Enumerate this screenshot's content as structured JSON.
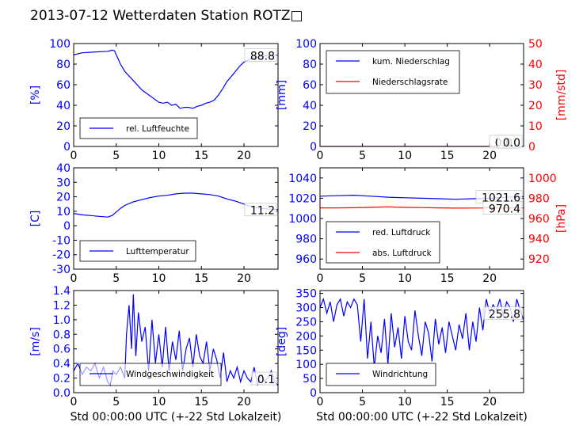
{
  "title": "2013-07-12 Wetterdaten Station ROTZ□",
  "colors": {
    "primary": "#0000ff",
    "secondary": "#ff0000",
    "axis": "#000000"
  },
  "chart_data": [
    {
      "type": "line",
      "id": "humidity",
      "ylabel": "[%]",
      "ylim": [
        0,
        100
      ],
      "yticks": [
        0,
        20,
        40,
        60,
        80,
        100
      ],
      "xlim": [
        0,
        24
      ],
      "xticks": [
        0,
        5,
        10,
        15,
        20
      ],
      "legend": "bottom-left",
      "last_value_label": "88.8",
      "series": [
        {
          "name": "rel. Luftfeuchte",
          "color": "#0000ff",
          "x": [
            0,
            1,
            2,
            3,
            4,
            4.5,
            4.8,
            5,
            5.5,
            6,
            7,
            8,
            9,
            10,
            10.5,
            11,
            11.5,
            12,
            12.5,
            13,
            13.5,
            14,
            14.5,
            15,
            15.5,
            16,
            16.5,
            17,
            17.5,
            18,
            18.5,
            19,
            19.5,
            20,
            21,
            22,
            23,
            24
          ],
          "y": [
            89,
            91,
            91.5,
            92,
            92.5,
            93.5,
            93,
            89,
            80,
            73,
            64,
            55,
            49,
            43,
            42,
            43,
            40,
            41,
            37,
            38,
            38,
            37,
            39,
            40,
            42,
            43,
            45,
            50,
            56,
            63,
            68,
            73,
            78,
            82,
            86,
            87.5,
            88.5,
            88.8
          ]
        }
      ]
    },
    {
      "type": "line",
      "id": "precipitation",
      "ylabel": "[mm]",
      "ylim": [
        0,
        100
      ],
      "yticks": [
        0,
        20,
        40,
        60,
        80,
        100
      ],
      "y2label": "[mm/std]",
      "y2lim": [
        0,
        50
      ],
      "y2ticks": [
        0,
        10,
        20,
        30,
        40,
        50
      ],
      "xlim": [
        0,
        24
      ],
      "xticks": [
        0,
        5,
        10,
        15,
        20
      ],
      "legend": "top-left",
      "last_value_labels": [
        "0.0",
        "0.0"
      ],
      "series": [
        {
          "name": "kum. Niederschlag",
          "axis": "left",
          "color": "#0000ff",
          "x": [
            0,
            24
          ],
          "y": [
            0,
            0
          ]
        },
        {
          "name": "Niederschlagsrate",
          "axis": "right",
          "color": "#ff0000",
          "x": [
            0,
            24
          ],
          "y": [
            0,
            0
          ]
        }
      ]
    },
    {
      "type": "line",
      "id": "temperature",
      "ylabel": "[C]",
      "ylim": [
        -30,
        40
      ],
      "yticks": [
        -30,
        -20,
        -10,
        0,
        10,
        20,
        30,
        40
      ],
      "xlim": [
        0,
        24
      ],
      "xticks": [
        0,
        5,
        10,
        15,
        20
      ],
      "legend": "bottom-left",
      "last_value_label": "11.2",
      "series": [
        {
          "name": "Lufttemperatur",
          "color": "#0000ff",
          "x": [
            0,
            1,
            2,
            3,
            4,
            4.5,
            5,
            5.5,
            6,
            7,
            8,
            9,
            10,
            11,
            12,
            13,
            14,
            15,
            16,
            17,
            18,
            19,
            20,
            21,
            22,
            23,
            24
          ],
          "y": [
            8.5,
            7.5,
            7,
            6.5,
            6,
            7,
            9.5,
            12,
            14,
            16.5,
            18,
            19.5,
            20.5,
            21,
            22,
            22.5,
            22.5,
            22,
            21.5,
            20.5,
            18.5,
            17,
            15,
            13,
            12,
            11.5,
            11.2
          ]
        }
      ]
    },
    {
      "type": "line",
      "id": "pressure",
      "ylim": [
        950,
        1050
      ],
      "yticks": [
        960,
        980,
        1000,
        1020,
        1040
      ],
      "y2label": "[hPa]",
      "y2lim": [
        910,
        1010
      ],
      "y2ticks": [
        920,
        940,
        960,
        980,
        1000
      ],
      "xlim": [
        0,
        24
      ],
      "xticks": [
        0,
        5,
        10,
        15,
        20
      ],
      "legend": "bottom-left",
      "last_value_labels": [
        "1021.6",
        "970.4"
      ],
      "series": [
        {
          "name": "red. Luftdruck",
          "axis": "left",
          "color": "#0000ff",
          "x": [
            0,
            2,
            4,
            6,
            8,
            10,
            12,
            14,
            16,
            18,
            20,
            22,
            24
          ],
          "y": [
            1022,
            1022.5,
            1023,
            1022,
            1021,
            1020.5,
            1020,
            1019.5,
            1019,
            1019.5,
            1020,
            1021,
            1021.6
          ]
        },
        {
          "name": "abs. Luftdruck",
          "axis": "right",
          "color": "#ff0000",
          "x": [
            0,
            2,
            4,
            6,
            8,
            10,
            12,
            14,
            16,
            18,
            20,
            22,
            24
          ],
          "y": [
            970.5,
            970.5,
            970.6,
            971,
            971.5,
            971,
            970.8,
            970.5,
            970.2,
            970.3,
            970.4,
            970.4,
            970.4
          ]
        }
      ]
    },
    {
      "type": "line",
      "id": "wind-speed",
      "ylabel": "[m/s]",
      "ylim": [
        0,
        1.4
      ],
      "yticks": [
        0.0,
        0.2,
        0.4,
        0.6,
        0.8,
        1.0,
        1.2,
        1.4
      ],
      "xlim": [
        0,
        24
      ],
      "xticks": [
        0,
        5,
        10,
        15,
        20
      ],
      "xlabel": "Std 00:00:00 UTC (+-22 Std Lokalzeit)",
      "legend": "bottom-left",
      "last_value_label": "0.1",
      "series": [
        {
          "name": "Windgeschwindigkeit",
          "color": "#0000ff",
          "x": [
            0,
            0.5,
            1,
            1.5,
            2,
            2.5,
            3,
            3.5,
            4,
            4.3,
            4.6,
            5,
            5.5,
            6,
            6.2,
            6.5,
            6.8,
            7,
            7.3,
            7.6,
            8,
            8.4,
            8.8,
            9.2,
            9.6,
            10,
            10.4,
            10.8,
            11.2,
            11.6,
            12,
            12.4,
            12.8,
            13.2,
            13.6,
            14,
            14.4,
            14.8,
            15.2,
            15.6,
            16,
            16.4,
            16.8,
            17.2,
            17.6,
            18,
            18.4,
            18.8,
            19.2,
            19.6,
            20,
            20.4,
            20.8,
            21.2,
            21.6,
            22,
            22.4,
            22.8,
            23.2,
            23.6,
            24
          ],
          "y": [
            0.3,
            0.4,
            0.25,
            0.35,
            0.3,
            0.4,
            0.2,
            0.35,
            0.15,
            0.1,
            0.3,
            0.25,
            0.35,
            0.2,
            0.8,
            1.2,
            0.6,
            1.35,
            0.5,
            1.1,
            0.7,
            0.9,
            0.3,
            1.0,
            0.4,
            0.8,
            0.35,
            0.9,
            0.3,
            0.7,
            0.45,
            0.85,
            0.3,
            0.6,
            0.75,
            0.35,
            0.8,
            0.5,
            0.4,
            0.7,
            0.3,
            0.6,
            0.45,
            0.2,
            0.55,
            0.15,
            0.3,
            0.2,
            0.35,
            0.15,
            0.3,
            0.2,
            0.15,
            0.35,
            0.1,
            0.25,
            0.15,
            0.2,
            0.3,
            0.15,
            0.1
          ]
        }
      ]
    },
    {
      "type": "line",
      "id": "wind-direction",
      "ylabel": "[deg]",
      "ylim": [
        0,
        360
      ],
      "yticks": [
        0,
        50,
        100,
        150,
        200,
        250,
        300,
        350
      ],
      "xlim": [
        0,
        24
      ],
      "xticks": [
        0,
        5,
        10,
        15,
        20
      ],
      "xlabel": "Std 00:00:00 UTC (+-22 Std Lokalzeit)",
      "legend": "bottom-left",
      "last_value_label": "255.8",
      "series": [
        {
          "name": "Windrichtung",
          "color": "#0000ff",
          "x": [
            0,
            0.4,
            0.8,
            1.2,
            1.6,
            2,
            2.4,
            2.8,
            3.2,
            3.6,
            4,
            4.4,
            4.8,
            5.2,
            5.6,
            6,
            6.4,
            6.8,
            7.2,
            7.6,
            8,
            8.4,
            8.8,
            9.2,
            9.6,
            10,
            10.4,
            10.8,
            11.2,
            11.6,
            12,
            12.4,
            12.8,
            13.2,
            13.6,
            14,
            14.4,
            14.8,
            15.2,
            15.6,
            16,
            16.4,
            16.8,
            17.2,
            17.6,
            18,
            18.4,
            18.8,
            19.2,
            19.6,
            20,
            20.4,
            20.8,
            21.2,
            21.6,
            22,
            22.4,
            22.8,
            23.2,
            23.6,
            24
          ],
          "y": [
            300,
            330,
            280,
            320,
            250,
            310,
            330,
            270,
            320,
            300,
            330,
            310,
            180,
            330,
            120,
            250,
            90,
            200,
            140,
            260,
            100,
            280,
            160,
            230,
            120,
            270,
            180,
            150,
            290,
            200,
            130,
            250,
            210,
            110,
            260,
            170,
            230,
            140,
            250,
            200,
            150,
            240,
            190,
            280,
            150,
            250,
            180,
            300,
            220,
            330,
            280,
            310,
            290,
            330,
            270,
            320,
            300,
            250,
            330,
            290,
            256
          ]
        }
      ]
    }
  ]
}
